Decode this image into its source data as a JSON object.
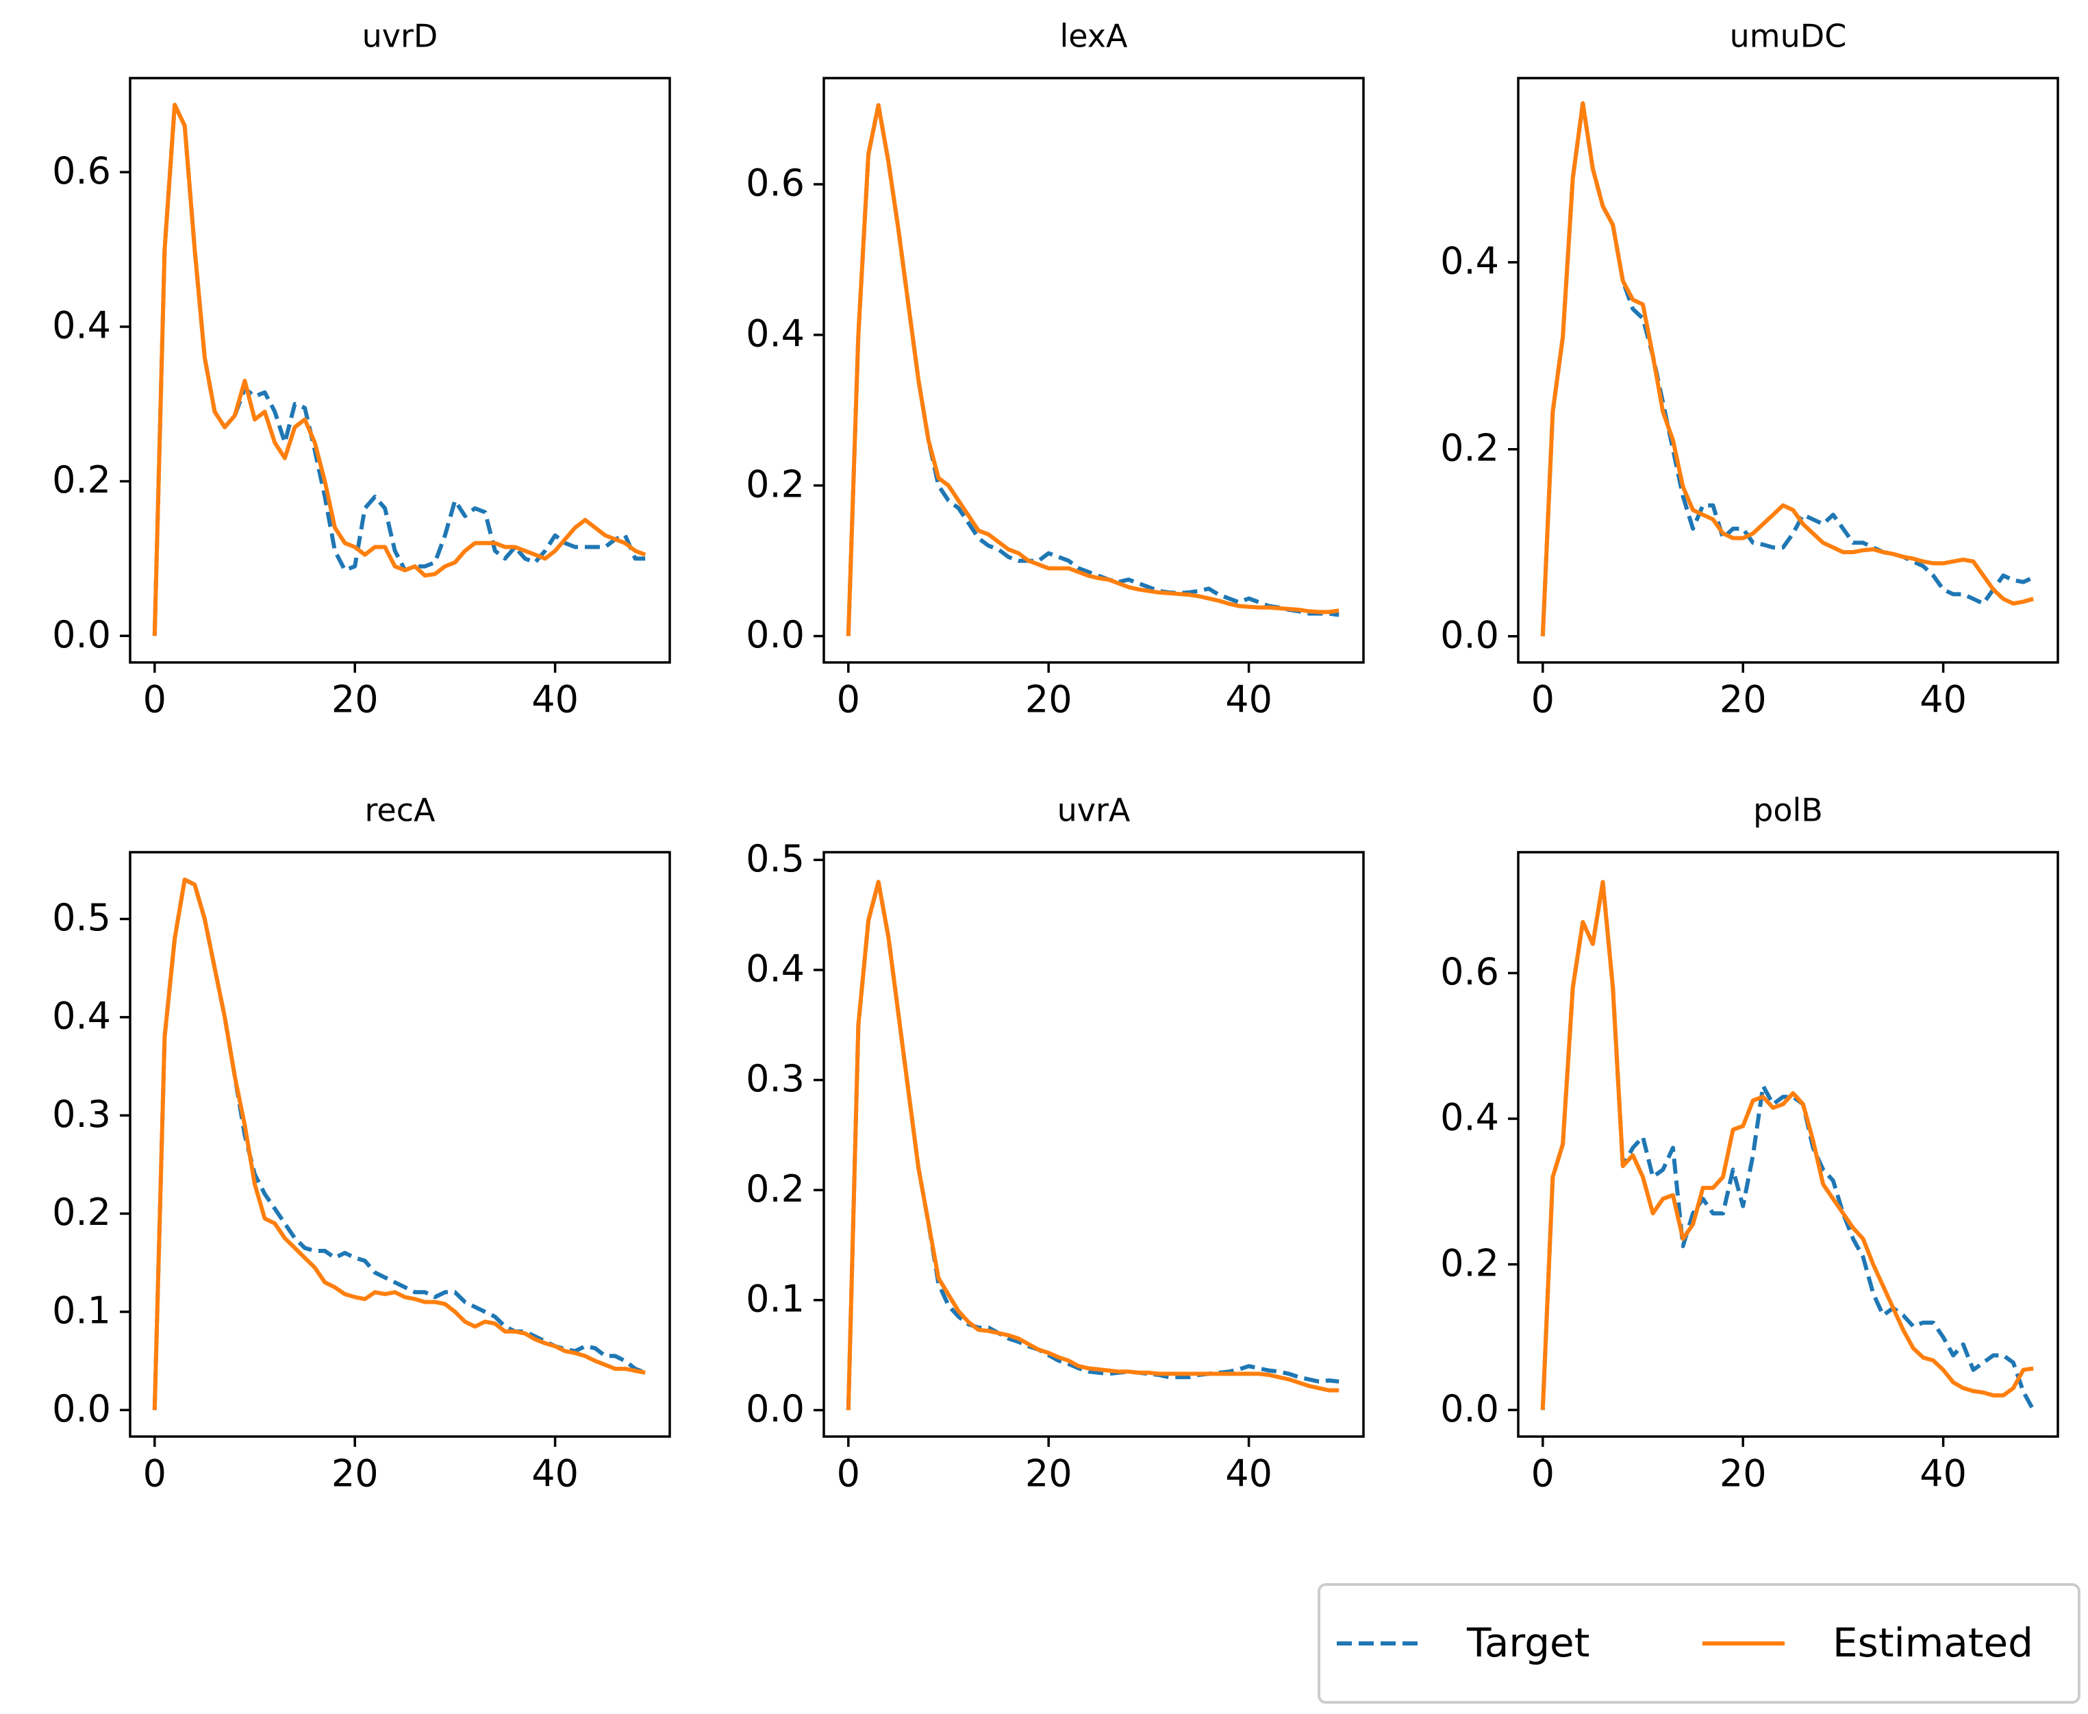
{
  "chart_data": [
    {
      "type": "line",
      "title": "uvrD",
      "x": [
        0,
        1,
        2,
        3,
        4,
        5,
        6,
        7,
        8,
        9,
        10,
        11,
        12,
        13,
        14,
        15,
        16,
        17,
        18,
        19,
        20,
        21,
        22,
        23,
        24,
        25,
        26,
        27,
        28,
        29,
        30,
        31,
        32,
        33,
        34,
        35,
        36,
        37,
        38,
        39,
        40,
        41,
        42,
        43,
        44,
        45,
        46,
        47,
        48,
        49
      ],
      "series": [
        {
          "name": "Target",
          "color": "#1f77b4",
          "dashed": true,
          "values": [
            0,
            0.5,
            0.687,
            0.66,
            0.5,
            0.36,
            0.29,
            0.27,
            0.285,
            0.32,
            0.31,
            0.315,
            0.29,
            0.25,
            0.3,
            0.295,
            0.24,
            0.18,
            0.11,
            0.085,
            0.09,
            0.165,
            0.18,
            0.165,
            0.11,
            0.085,
            0.09,
            0.09,
            0.095,
            0.13,
            0.175,
            0.155,
            0.165,
            0.16,
            0.11,
            0.1,
            0.115,
            0.1,
            0.095,
            0.11,
            0.13,
            0.12,
            0.115,
            0.115,
            0.115,
            0.115,
            0.125,
            0.13,
            0.1,
            0.1
          ]
        },
        {
          "name": "Estimated",
          "color": "#ff7f0e",
          "dashed": false,
          "values": [
            0,
            0.5,
            0.687,
            0.66,
            0.5,
            0.36,
            0.29,
            0.27,
            0.285,
            0.33,
            0.28,
            0.29,
            0.25,
            0.23,
            0.27,
            0.28,
            0.25,
            0.2,
            0.14,
            0.12,
            0.115,
            0.105,
            0.115,
            0.115,
            0.09,
            0.085,
            0.09,
            0.078,
            0.08,
            0.09,
            0.095,
            0.11,
            0.12,
            0.12,
            0.12,
            0.115,
            0.115,
            0.11,
            0.105,
            0.1,
            0.11,
            0.125,
            0.14,
            0.15,
            0.14,
            0.13,
            0.125,
            0.12,
            0.11,
            0.105
          ]
        }
      ],
      "xlim": [
        -2.45,
        51.45
      ],
      "xticks": [
        0,
        20,
        40
      ],
      "ylim": [
        -0.0344,
        0.7217
      ],
      "yticks": [
        {
          "value": 0,
          "label": "0.0"
        },
        0.2,
        0.4,
        0.6
      ]
    },
    {
      "type": "line",
      "title": "lexA",
      "x": [
        0,
        1,
        2,
        3,
        4,
        5,
        6,
        7,
        8,
        9,
        10,
        11,
        12,
        13,
        14,
        15,
        16,
        17,
        18,
        19,
        20,
        21,
        22,
        23,
        24,
        25,
        26,
        27,
        28,
        29,
        30,
        31,
        32,
        33,
        34,
        35,
        36,
        37,
        38,
        39,
        40,
        41,
        42,
        43,
        44,
        45,
        46,
        47,
        48,
        49
      ],
      "series": [
        {
          "name": "Target",
          "color": "#1f77b4",
          "dashed": true,
          "values": [
            0,
            0.4,
            0.64,
            0.705,
            0.63,
            0.54,
            0.44,
            0.34,
            0.26,
            0.2,
            0.18,
            0.17,
            0.15,
            0.13,
            0.12,
            0.115,
            0.105,
            0.1,
            0.1,
            0.1,
            0.11,
            0.105,
            0.1,
            0.09,
            0.085,
            0.08,
            0.075,
            0.072,
            0.075,
            0.07,
            0.065,
            0.06,
            0.058,
            0.057,
            0.058,
            0.06,
            0.063,
            0.055,
            0.05,
            0.045,
            0.05,
            0.045,
            0.04,
            0.038,
            0.035,
            0.033,
            0.03,
            0.03,
            0.03,
            0.028
          ]
        },
        {
          "name": "Estimated",
          "color": "#ff7f0e",
          "dashed": false,
          "values": [
            0,
            0.4,
            0.64,
            0.705,
            0.63,
            0.54,
            0.44,
            0.34,
            0.26,
            0.21,
            0.2,
            0.18,
            0.16,
            0.14,
            0.135,
            0.125,
            0.115,
            0.11,
            0.1,
            0.095,
            0.09,
            0.09,
            0.09,
            0.085,
            0.08,
            0.077,
            0.075,
            0.07,
            0.065,
            0.062,
            0.06,
            0.058,
            0.057,
            0.056,
            0.055,
            0.053,
            0.05,
            0.047,
            0.043,
            0.04,
            0.039,
            0.038,
            0.038,
            0.037,
            0.036,
            0.035,
            0.033,
            0.032,
            0.032,
            0.034
          ]
        }
      ],
      "xlim": [
        -2.45,
        51.45
      ],
      "xticks": [
        0,
        20,
        40
      ],
      "ylim": [
        -0.035,
        0.741
      ],
      "yticks": [
        {
          "value": 0,
          "label": "0.0"
        },
        0.2,
        0.4,
        0.6
      ]
    },
    {
      "type": "line",
      "title": "umuDC",
      "x": [
        0,
        1,
        2,
        3,
        4,
        5,
        6,
        7,
        8,
        9,
        10,
        11,
        12,
        13,
        14,
        15,
        16,
        17,
        18,
        19,
        20,
        21,
        22,
        23,
        24,
        25,
        26,
        27,
        28,
        29,
        30,
        31,
        32,
        33,
        34,
        35,
        36,
        37,
        38,
        39,
        40,
        41,
        42,
        43,
        44,
        45,
        46,
        47,
        48,
        49
      ],
      "series": [
        {
          "name": "Target",
          "color": "#1f77b4",
          "dashed": true,
          "values": [
            0,
            0.24,
            0.32,
            0.49,
            0.57,
            0.5,
            0.46,
            0.44,
            0.38,
            0.35,
            0.34,
            0.3,
            0.25,
            0.2,
            0.15,
            0.115,
            0.14,
            0.14,
            0.105,
            0.115,
            0.115,
            0.1,
            0.098,
            0.095,
            0.095,
            0.11,
            0.13,
            0.125,
            0.12,
            0.13,
            0.115,
            0.1,
            0.1,
            0.095,
            0.09,
            0.088,
            0.085,
            0.08,
            0.075,
            0.065,
            0.05,
            0.045,
            0.045,
            0.04,
            0.035,
            0.05,
            0.065,
            0.06,
            0.058,
            0.063
          ]
        },
        {
          "name": "Estimated",
          "color": "#ff7f0e",
          "dashed": false,
          "values": [
            0,
            0.24,
            0.32,
            0.49,
            0.57,
            0.5,
            0.46,
            0.44,
            0.38,
            0.36,
            0.355,
            0.3,
            0.24,
            0.21,
            0.16,
            0.135,
            0.13,
            0.125,
            0.11,
            0.105,
            0.105,
            0.11,
            0.12,
            0.13,
            0.14,
            0.135,
            0.12,
            0.11,
            0.1,
            0.095,
            0.09,
            0.09,
            0.092,
            0.093,
            0.09,
            0.088,
            0.085,
            0.083,
            0.08,
            0.078,
            0.078,
            0.08,
            0.082,
            0.08,
            0.065,
            0.05,
            0.04,
            0.035,
            0.037,
            0.04
          ]
        }
      ],
      "xlim": [
        -2.45,
        51.45
      ],
      "xticks": [
        0,
        20,
        40
      ],
      "ylim": [
        -0.028,
        0.597
      ],
      "yticks": [
        {
          "value": 0,
          "label": "0.0"
        },
        0.2,
        0.4
      ]
    },
    {
      "type": "line",
      "title": "recA",
      "x": [
        0,
        1,
        2,
        3,
        4,
        5,
        6,
        7,
        8,
        9,
        10,
        11,
        12,
        13,
        14,
        15,
        16,
        17,
        18,
        19,
        20,
        21,
        22,
        23,
        24,
        25,
        26,
        27,
        28,
        29,
        30,
        31,
        32,
        33,
        34,
        35,
        36,
        37,
        38,
        39,
        40,
        41,
        42,
        43,
        44,
        45,
        46,
        47,
        48,
        49
      ],
      "series": [
        {
          "name": "Target",
          "color": "#1f77b4",
          "dashed": true,
          "values": [
            0,
            0.38,
            0.48,
            0.54,
            0.535,
            0.5,
            0.45,
            0.4,
            0.34,
            0.28,
            0.24,
            0.22,
            0.205,
            0.19,
            0.175,
            0.165,
            0.162,
            0.162,
            0.155,
            0.16,
            0.155,
            0.152,
            0.14,
            0.135,
            0.13,
            0.125,
            0.12,
            0.12,
            0.115,
            0.12,
            0.12,
            0.11,
            0.105,
            0.1,
            0.095,
            0.085,
            0.08,
            0.08,
            0.075,
            0.07,
            0.065,
            0.062,
            0.06,
            0.065,
            0.063,
            0.055,
            0.055,
            0.05,
            0.042,
            0.038
          ]
        },
        {
          "name": "Estimated",
          "color": "#ff7f0e",
          "dashed": false,
          "values": [
            0,
            0.38,
            0.48,
            0.54,
            0.535,
            0.5,
            0.45,
            0.4,
            0.34,
            0.29,
            0.23,
            0.195,
            0.19,
            0.175,
            0.165,
            0.155,
            0.145,
            0.13,
            0.125,
            0.118,
            0.115,
            0.113,
            0.12,
            0.118,
            0.12,
            0.115,
            0.113,
            0.11,
            0.11,
            0.108,
            0.1,
            0.09,
            0.085,
            0.09,
            0.088,
            0.08,
            0.08,
            0.078,
            0.072,
            0.068,
            0.065,
            0.06,
            0.058,
            0.055,
            0.05,
            0.046,
            0.042,
            0.042,
            0.04,
            0.038
          ]
        }
      ],
      "xlim": [
        -2.45,
        51.45
      ],
      "xticks": [
        0,
        20,
        40
      ],
      "ylim": [
        -0.027,
        0.568
      ],
      "yticks": [
        {
          "value": 0,
          "label": "0.0"
        },
        0.1,
        0.2,
        0.3,
        0.4,
        0.5
      ]
    },
    {
      "type": "line",
      "title": "uvrA",
      "x": [
        0,
        1,
        2,
        3,
        4,
        5,
        6,
        7,
        8,
        9,
        10,
        11,
        12,
        13,
        14,
        15,
        16,
        17,
        18,
        19,
        20,
        21,
        22,
        23,
        24,
        25,
        26,
        27,
        28,
        29,
        30,
        31,
        32,
        33,
        34,
        35,
        36,
        37,
        38,
        39,
        40,
        41,
        42,
        43,
        44,
        45,
        46,
        47,
        48,
        49
      ],
      "series": [
        {
          "name": "Target",
          "color": "#1f77b4",
          "dashed": true,
          "values": [
            0,
            0.35,
            0.445,
            0.48,
            0.43,
            0.36,
            0.29,
            0.22,
            0.17,
            0.115,
            0.095,
            0.085,
            0.078,
            0.075,
            0.075,
            0.07,
            0.065,
            0.062,
            0.058,
            0.055,
            0.05,
            0.045,
            0.042,
            0.038,
            0.035,
            0.034,
            0.033,
            0.034,
            0.035,
            0.034,
            0.033,
            0.032,
            0.03,
            0.03,
            0.03,
            0.032,
            0.033,
            0.034,
            0.035,
            0.037,
            0.04,
            0.038,
            0.036,
            0.035,
            0.033,
            0.03,
            0.028,
            0.026,
            0.027,
            0.026
          ]
        },
        {
          "name": "Estimated",
          "color": "#ff7f0e",
          "dashed": false,
          "values": [
            0,
            0.35,
            0.445,
            0.48,
            0.43,
            0.36,
            0.29,
            0.22,
            0.17,
            0.12,
            0.105,
            0.09,
            0.08,
            0.073,
            0.072,
            0.07,
            0.068,
            0.065,
            0.06,
            0.055,
            0.052,
            0.048,
            0.045,
            0.04,
            0.038,
            0.037,
            0.036,
            0.035,
            0.035,
            0.034,
            0.034,
            0.033,
            0.033,
            0.033,
            0.033,
            0.033,
            0.033,
            0.033,
            0.033,
            0.033,
            0.033,
            0.033,
            0.032,
            0.03,
            0.028,
            0.025,
            0.022,
            0.02,
            0.018,
            0.018
          ]
        }
      ],
      "xlim": [
        -2.45,
        51.45
      ],
      "xticks": [
        0,
        20,
        40
      ],
      "ylim": [
        -0.024,
        0.507
      ],
      "yticks": [
        {
          "value": 0,
          "label": "0.0"
        },
        0.1,
        0.2,
        0.3,
        0.4,
        0.5
      ]
    },
    {
      "type": "line",
      "title": "polB",
      "x": [
        0,
        1,
        2,
        3,
        4,
        5,
        6,
        7,
        8,
        9,
        10,
        11,
        12,
        13,
        14,
        15,
        16,
        17,
        18,
        19,
        20,
        21,
        22,
        23,
        24,
        25,
        26,
        27,
        28,
        29,
        30,
        31,
        32,
        33,
        34,
        35,
        36,
        37,
        38,
        39,
        40,
        41,
        42,
        43,
        44,
        45,
        46,
        47,
        48,
        49
      ],
      "series": [
        {
          "name": "Target",
          "color": "#1f77b4",
          "dashed": true,
          "values": [
            0,
            0.32,
            0.365,
            0.58,
            0.67,
            0.64,
            0.725,
            0.58,
            0.335,
            0.36,
            0.375,
            0.32,
            0.33,
            0.36,
            0.225,
            0.27,
            0.29,
            0.27,
            0.27,
            0.33,
            0.28,
            0.35,
            0.445,
            0.42,
            0.43,
            0.43,
            0.42,
            0.36,
            0.33,
            0.315,
            0.27,
            0.235,
            0.21,
            0.16,
            0.13,
            0.14,
            0.13,
            0.115,
            0.12,
            0.12,
            0.1,
            0.075,
            0.09,
            0.055,
            0.065,
            0.075,
            0.075,
            0.065,
            0.025,
            0
          ]
        },
        {
          "name": "Estimated",
          "color": "#ff7f0e",
          "dashed": false,
          "values": [
            0,
            0.32,
            0.365,
            0.58,
            0.67,
            0.64,
            0.725,
            0.58,
            0.335,
            0.35,
            0.32,
            0.27,
            0.29,
            0.295,
            0.235,
            0.255,
            0.305,
            0.305,
            0.32,
            0.385,
            0.39,
            0.425,
            0.43,
            0.415,
            0.42,
            0.435,
            0.42,
            0.37,
            0.31,
            0.29,
            0.27,
            0.25,
            0.235,
            0.2,
            0.17,
            0.14,
            0.11,
            0.085,
            0.072,
            0.068,
            0.055,
            0.038,
            0.03,
            0.026,
            0.024,
            0.02,
            0.02,
            0.03,
            0.055,
            0.057
          ]
        }
      ],
      "xlim": [
        -2.45,
        51.45
      ],
      "xticks": [
        0,
        20,
        40
      ],
      "ylim": [
        -0.0365,
        0.766
      ],
      "yticks": [
        {
          "value": 0,
          "label": "0.0"
        },
        0.2,
        0.4,
        0.6
      ]
    }
  ]
}
